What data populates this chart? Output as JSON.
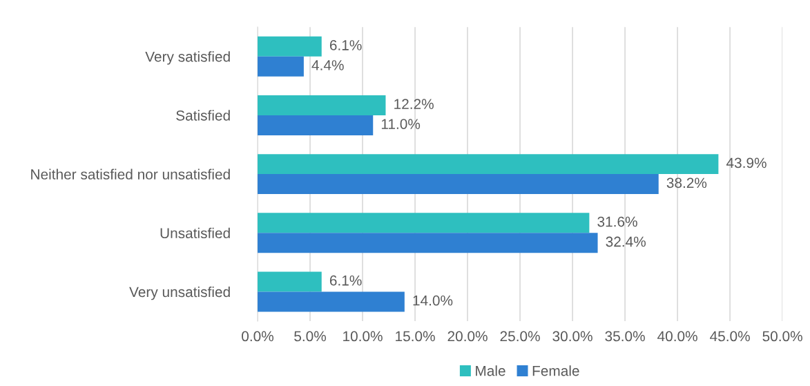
{
  "chart_data": {
    "type": "bar",
    "orientation": "horizontal",
    "categories": [
      "Very satisfied",
      "Satisfied",
      "Neither satisfied nor unsatisfied",
      "Unsatisfied",
      "Very unsatisfied"
    ],
    "series": [
      {
        "name": "Male",
        "color": "#2ebfbf",
        "values": [
          6.1,
          12.2,
          43.9,
          31.6,
          6.1
        ],
        "value_labels": [
          "6.1%",
          "12.2%",
          "43.9%",
          "31.6%",
          "6.1%"
        ]
      },
      {
        "name": "Female",
        "color": "#2f80d2",
        "values": [
          4.4,
          11.0,
          38.2,
          32.4,
          14.0
        ],
        "value_labels": [
          "4.4%",
          "11.0%",
          "38.2%",
          "32.4%",
          "14.0%"
        ]
      }
    ],
    "xlim": [
      0,
      50
    ],
    "xticks": [
      {
        "value": 0,
        "label": "0.0%"
      },
      {
        "value": 5,
        "label": "5.0%"
      },
      {
        "value": 10,
        "label": "10.0%"
      },
      {
        "value": 15,
        "label": "15.0%"
      },
      {
        "value": 20,
        "label": "20.0%"
      },
      {
        "value": 25,
        "label": "25.0%"
      },
      {
        "value": 30,
        "label": "30.0%"
      },
      {
        "value": 35,
        "label": "35.0%"
      },
      {
        "value": 40,
        "label": "40.0%"
      },
      {
        "value": 45,
        "label": "45.0%"
      },
      {
        "value": 50,
        "label": "50.0%"
      }
    ],
    "grid": "x",
    "legend": "bottom"
  }
}
